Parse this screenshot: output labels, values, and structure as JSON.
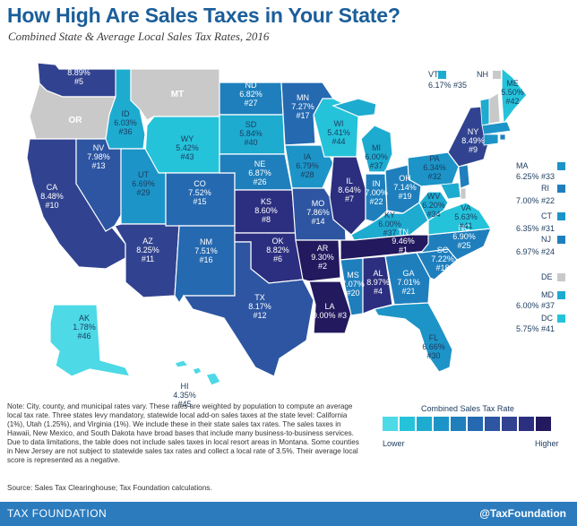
{
  "title": "How High Are Sales Taxes in Your State?",
  "subtitle": "Combined State & Average Local Sales Tax Rates, 2016",
  "colors": {
    "no_tax": "#c9c9c9",
    "scale": [
      "#4dd9e6",
      "#25c3da",
      "#1eabd0",
      "#1d94c7",
      "#1f7fbd",
      "#2569b0",
      "#2d55a2",
      "#314390",
      "#2c2f7f",
      "#23195e"
    ],
    "brand": "#2b7bbd"
  },
  "states": [
    {
      "abbr": "WA",
      "rate": "8.89%",
      "rank": "#5",
      "tier": 7
    },
    {
      "abbr": "OR",
      "rate": "",
      "rank": "",
      "tier": -1
    },
    {
      "abbr": "CA",
      "rate": "8.48%",
      "rank": "#10",
      "tier": 7
    },
    {
      "abbr": "NV",
      "rate": "7.98%",
      "rank": "#13",
      "tier": 6
    },
    {
      "abbr": "ID",
      "rate": "6.03%",
      "rank": "#36",
      "tier": 2
    },
    {
      "abbr": "MT",
      "rate": "",
      "rank": "",
      "tier": -1
    },
    {
      "abbr": "WY",
      "rate": "5.42%",
      "rank": "#43",
      "tier": 1
    },
    {
      "abbr": "UT",
      "rate": "6.69%",
      "rank": "#29",
      "tier": 3
    },
    {
      "abbr": "AZ",
      "rate": "8.25%",
      "rank": "#11",
      "tier": 7
    },
    {
      "abbr": "CO",
      "rate": "7.52%",
      "rank": "#15",
      "tier": 5
    },
    {
      "abbr": "NM",
      "rate": "7.51%",
      "rank": "#16",
      "tier": 5
    },
    {
      "abbr": "ND",
      "rate": "6.82%",
      "rank": "#27",
      "tier": 4
    },
    {
      "abbr": "SD",
      "rate": "5.84%",
      "rank": "#40",
      "tier": 2
    },
    {
      "abbr": "NE",
      "rate": "6.87%",
      "rank": "#26",
      "tier": 4
    },
    {
      "abbr": "KS",
      "rate": "8.60%",
      "rank": "#8",
      "tier": 8
    },
    {
      "abbr": "OK",
      "rate": "8.82%",
      "rank": "#6",
      "tier": 8
    },
    {
      "abbr": "TX",
      "rate": "8.17%",
      "rank": "#12",
      "tier": 6
    },
    {
      "abbr": "MN",
      "rate": "7.27%",
      "rank": "#17",
      "tier": 5
    },
    {
      "abbr": "IA",
      "rate": "6.79%",
      "rank": "#28",
      "tier": 3
    },
    {
      "abbr": "MO",
      "rate": "7.86%",
      "rank": "#14",
      "tier": 6
    },
    {
      "abbr": "AR",
      "rate": "9.30%",
      "rank": "#2",
      "tier": 9
    },
    {
      "abbr": "LA",
      "rate": "9.00%",
      "rank": "#3",
      "tier": 9
    },
    {
      "abbr": "WI",
      "rate": "5.41%",
      "rank": "#44",
      "tier": 1
    },
    {
      "abbr": "IL",
      "rate": "8.64%",
      "rank": "#7",
      "tier": 8
    },
    {
      "abbr": "MI",
      "rate": "6.00%",
      "rank": "#37",
      "tier": 2
    },
    {
      "abbr": "IN",
      "rate": "7.00%",
      "rank": "#22",
      "tier": 4
    },
    {
      "abbr": "OH",
      "rate": "7.14%",
      "rank": "#19",
      "tier": 4
    },
    {
      "abbr": "KY",
      "rate": "6.00%",
      "rank": "#37",
      "tier": 2
    },
    {
      "abbr": "TN",
      "rate": "9.46%",
      "rank": "#1",
      "tier": 9
    },
    {
      "abbr": "MS",
      "rate": "7.07%",
      "rank": "#20",
      "tier": 4
    },
    {
      "abbr": "AL",
      "rate": "8.97%",
      "rank": "#4",
      "tier": 8
    },
    {
      "abbr": "GA",
      "rate": "7.01%",
      "rank": "#21",
      "tier": 4
    },
    {
      "abbr": "FL",
      "rate": "6.66%",
      "rank": "#30",
      "tier": 3
    },
    {
      "abbr": "SC",
      "rate": "7.22%",
      "rank": "#18",
      "tier": 4
    },
    {
      "abbr": "NC",
      "rate": "6.90%",
      "rank": "#25",
      "tier": 4
    },
    {
      "abbr": "VA",
      "rate": "5.63%",
      "rank": "#41",
      "tier": 1
    },
    {
      "abbr": "WV",
      "rate": "6.20%",
      "rank": "#34",
      "tier": 2
    },
    {
      "abbr": "PA",
      "rate": "6.34%",
      "rank": "#32",
      "tier": 3
    },
    {
      "abbr": "NY",
      "rate": "8.49%",
      "rank": "#9",
      "tier": 7
    },
    {
      "abbr": "ME",
      "rate": "5.50%",
      "rank": "#42",
      "tier": 1
    },
    {
      "abbr": "AK",
      "rate": "1.78%",
      "rank": "#46",
      "tier": 0
    },
    {
      "abbr": "HI",
      "rate": "4.35%",
      "rank": "#45",
      "tier": 0
    }
  ],
  "sidebar_states": [
    {
      "abbr": "VT",
      "rate": "6.17%",
      "rank": "#35",
      "tier": 2
    },
    {
      "abbr": "NH",
      "rate": "",
      "rank": "",
      "tier": -1
    },
    {
      "abbr": "MA",
      "rate": "6.25%",
      "rank": "#33",
      "tier": 3
    },
    {
      "abbr": "RI",
      "rate": "7.00%",
      "rank": "#22",
      "tier": 4
    },
    {
      "abbr": "CT",
      "rate": "6.35%",
      "rank": "#31",
      "tier": 3
    },
    {
      "abbr": "NJ",
      "rate": "6.97%",
      "rank": "#24",
      "tier": 4
    },
    {
      "abbr": "DE",
      "rate": "",
      "rank": "",
      "tier": -1
    },
    {
      "abbr": "MD",
      "rate": "6.00%",
      "rank": "#37",
      "tier": 2
    },
    {
      "abbr": "DC",
      "rate": "5.75%",
      "rank": "#41",
      "tier": 1
    }
  ],
  "legend": {
    "title": "Combined Sales Tax Rate",
    "low_label": "Lower",
    "high_label": "Higher"
  },
  "note": "Note: City, county, and municipal rates vary. These rates are weighted by population to compute an average local tax rate. Three states levy mandatory, statewide local add-on sales taxes at the state level: California (1%), Utah (1.25%), and Virginia (1%). We include these in their state sales tax rates. The sales taxes in Hawaii, New Mexico, and South Dakota have broad bases that include many business-to-business services. Due to data limitations, the table does not include sales taxes in local resort areas in Montana. Some counties in New Jersey are not subject to statewide sales tax rates and collect a local rate of 3.5%. Their average local score is represented as a negative.",
  "source": "Source: Sales Tax Clearinghouse; Tax Foundation calculations.",
  "footer": {
    "left": "TAX FOUNDATION",
    "right": "@TaxFoundation"
  }
}
